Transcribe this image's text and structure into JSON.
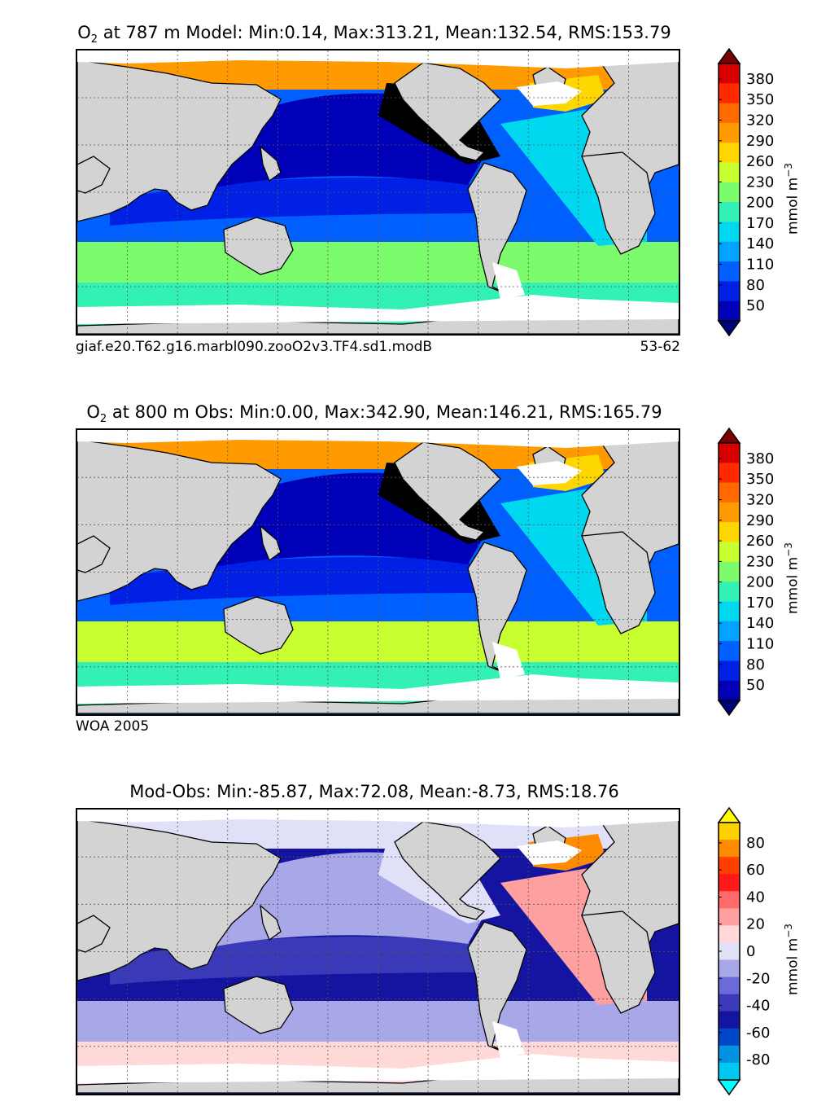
{
  "panels": [
    {
      "title_species": "O",
      "title_sub": "2",
      "title_text": " at 787 m Model: Min:0.14, Max:313.21, Mean:132.54, RMS:153.79",
      "footer_left": "giaf.e20.T62.g16.marbl090.zooO2v3.TF4.sd1.modB",
      "footer_right": "53-62",
      "colorbar": {
        "ticks": [
          "380",
          "350",
          "320",
          "290",
          "260",
          "230",
          "200",
          "170",
          "140",
          "110",
          "80",
          "50"
        ],
        "colors": [
          "#7f0000",
          "#d60000",
          "#ff2a00",
          "#ff6a00",
          "#ff9a00",
          "#ffd700",
          "#c8ff30",
          "#7cfc6c",
          "#33f0b4",
          "#00d8f0",
          "#00a4ff",
          "#0060ff",
          "#0020e6",
          "#0000b8",
          "#00007a"
        ],
        "units": "mmol m",
        "units_exp": "−3"
      },
      "ocean_colors": {
        "north_polar": "#ff9a00",
        "subpolar_atl": "#ffd700",
        "n_pacific_core": "#000000",
        "pacific_band1": "#0000b8",
        "pacific_band2": "#0020e6",
        "tropics": "#0060ff",
        "atlantic": "#00d8f0",
        "southern": "#7cfc6c",
        "antarctic": "#33f0b4"
      }
    },
    {
      "title_species": "O",
      "title_sub": "2",
      "title_text": " at 800 m Obs: Min:0.00, Max:342.90, Mean:146.21, RMS:165.79",
      "footer_left": "WOA 2005",
      "footer_right": "",
      "colorbar": {
        "ticks": [
          "380",
          "350",
          "320",
          "290",
          "260",
          "230",
          "200",
          "170",
          "140",
          "110",
          "80",
          "50"
        ],
        "colors": [
          "#7f0000",
          "#d60000",
          "#ff2a00",
          "#ff6a00",
          "#ff9a00",
          "#ffd700",
          "#c8ff30",
          "#7cfc6c",
          "#33f0b4",
          "#00d8f0",
          "#00a4ff",
          "#0060ff",
          "#0020e6",
          "#0000b8",
          "#00007a"
        ],
        "units": "mmol m",
        "units_exp": "−3"
      },
      "ocean_colors": {
        "north_polar": "#ff9a00",
        "subpolar_atl": "#ffd700",
        "n_pacific_core": "#000000",
        "pacific_band1": "#0000b8",
        "pacific_band2": "#0020e6",
        "tropics": "#0060ff",
        "atlantic": "#00d8f0",
        "southern": "#c8ff30",
        "antarctic": "#33f0b4"
      }
    },
    {
      "title_species": "",
      "title_sub": "",
      "title_text": "Mod-Obs: Min:-85.87, Max:72.08, Mean:-8.73, RMS:18.76",
      "footer_left": "",
      "footer_right": "",
      "colorbar": {
        "ticks": [
          "80",
          "60",
          "40",
          "20",
          "0",
          "-20",
          "-40",
          "-60",
          "-80"
        ],
        "colors": [
          "#ffff00",
          "#ffd000",
          "#ff8c00",
          "#ff4000",
          "#ff1a1a",
          "#ff6b6b",
          "#ffa0a0",
          "#ffd8d8",
          "#e0e0f8",
          "#a8a8e8",
          "#6a6ad8",
          "#3a3ab8",
          "#1414a0",
          "#0048c8",
          "#0094e0",
          "#00c8f0",
          "#00ffff"
        ],
        "units": "mmol m",
        "units_exp": "−3"
      },
      "ocean_colors": {
        "north_polar": "#e0e0f8",
        "subpolar_atl": "#ff8c00",
        "n_pacific_core": "#e0e0f8",
        "pacific_band1": "#a8a8e8",
        "pacific_band2": "#3a3ab8",
        "tropics": "#1414a0",
        "atlantic": "#ffa0a0",
        "southern": "#a8a8e8",
        "antarctic": "#ffd8d8"
      }
    }
  ],
  "land_color": "#d3d3d3",
  "coast_color": "#000000"
}
